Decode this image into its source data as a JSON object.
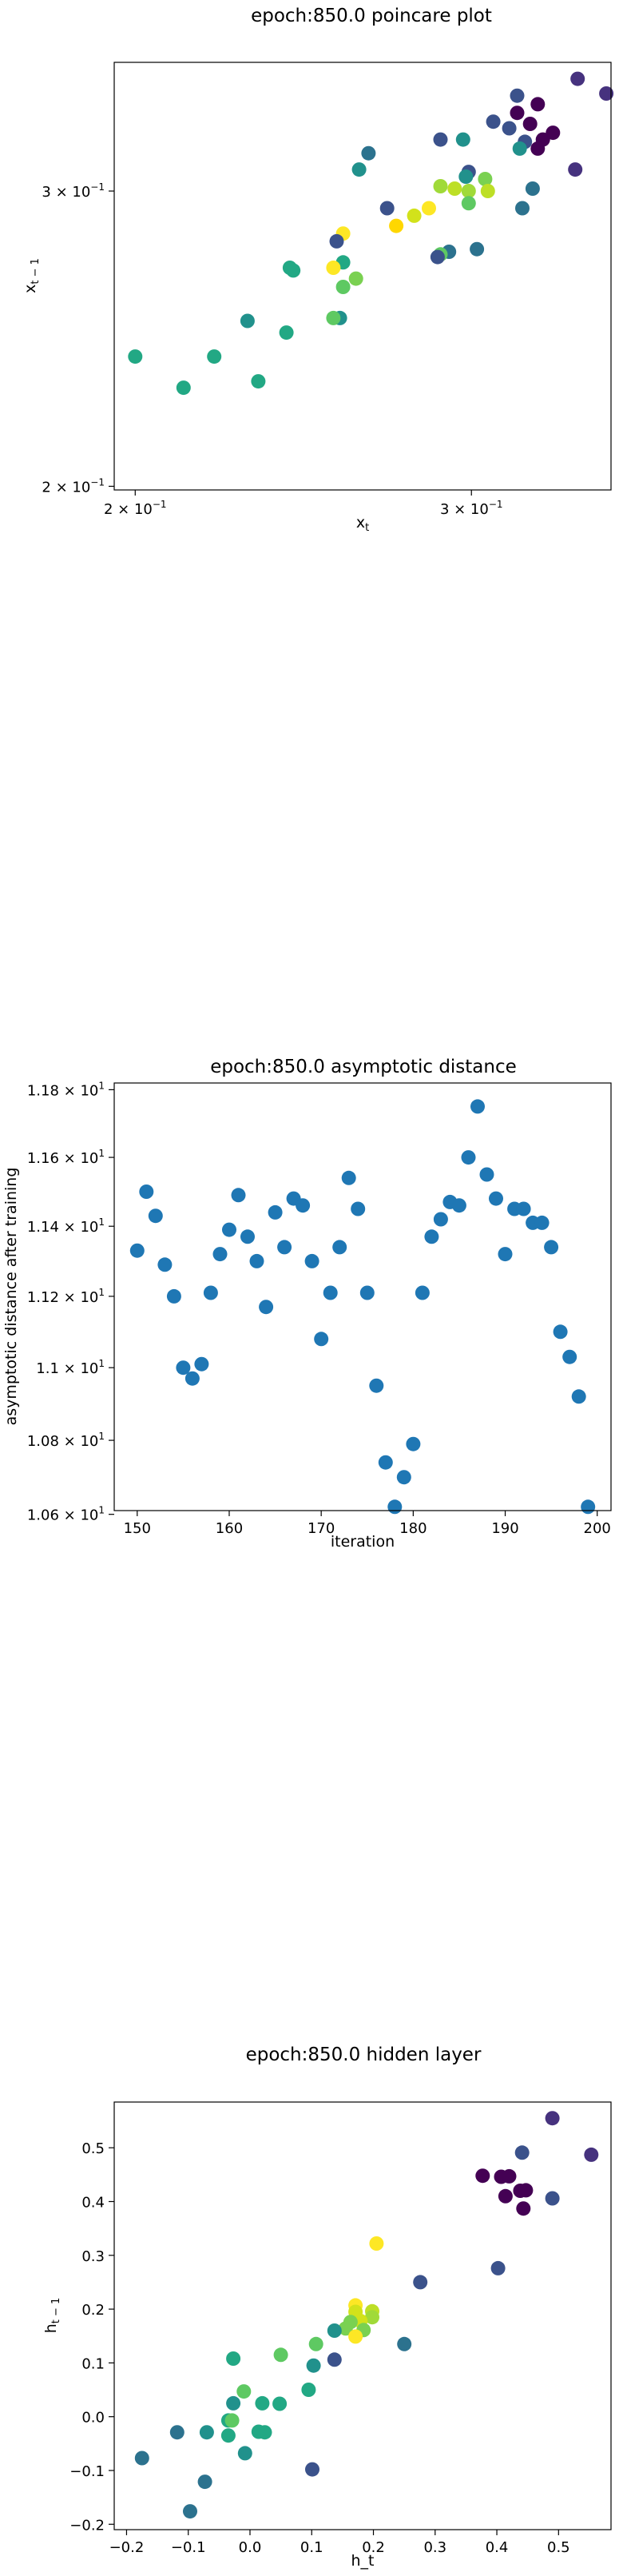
{
  "charts": {
    "poincare": {
      "title": "epoch:850.0 poincare plot",
      "xlabel": "x",
      "xlabel_sub": "t",
      "ylabel": "x",
      "ylabel_sub": "t − 1",
      "xticks": [
        {
          "v": 0.2,
          "base": "2 × 10",
          "exp": "−1"
        },
        {
          "v": 0.3,
          "base": "3 × 10",
          "exp": "−1"
        }
      ],
      "yticks": [
        {
          "v": 0.2,
          "base": "2 × 10",
          "exp": "−1"
        },
        {
          "v": 0.3,
          "base": "3 × 10",
          "exp": "−1"
        }
      ]
    },
    "asymptotic": {
      "title": "epoch:850.0 asymptotic distance",
      "xlabel": "iteration",
      "ylabel": "asymptotic distance after training",
      "xticks": [
        "150",
        "160",
        "170",
        "180",
        "190",
        "200"
      ],
      "yticks": [
        {
          "v": 10.6,
          "base": "1.06 × 10",
          "exp": "1"
        },
        {
          "v": 10.8,
          "base": "1.08 × 10",
          "exp": "1"
        },
        {
          "v": 11.0,
          "base": "1.1 × 10",
          "exp": "1"
        },
        {
          "v": 11.2,
          "base": "1.12 × 10",
          "exp": "1"
        },
        {
          "v": 11.4,
          "base": "1.14 × 10",
          "exp": "1"
        },
        {
          "v": 11.6,
          "base": "1.16 × 10",
          "exp": "1"
        },
        {
          "v": 11.8,
          "base": "1.18 × 10",
          "exp": "1"
        }
      ]
    },
    "hidden": {
      "title": "epoch:850.0 hidden layer",
      "xlabel": "h_t",
      "ylabel": "h",
      "ylabel_sub": "t − 1",
      "xticks": [
        "−0.2",
        "−0.1",
        "0.0",
        "0.1",
        "0.2",
        "0.3",
        "0.4",
        "0.5"
      ],
      "yticks": [
        "−0.2",
        "−0.1",
        "0.0",
        "0.1",
        "0.2",
        "0.3",
        "0.4",
        "0.5"
      ]
    }
  },
  "chart_data": [
    {
      "type": "scatter",
      "title": "epoch:850.0 poincare plot",
      "xlabel": "x_t",
      "ylabel": "x_{t-1}",
      "xscale": "log",
      "yscale": "log",
      "xlim": [
        0.195,
        0.355
      ],
      "ylim": [
        0.199,
        0.358
      ],
      "colormap": "viridis",
      "points": [
        [
          0.341,
          0.35,
          "#46327e"
        ],
        [
          0.353,
          0.343,
          "#46327e"
        ],
        [
          0.317,
          0.342,
          "#3b528b"
        ],
        [
          0.325,
          0.338,
          "#440154"
        ],
        [
          0.317,
          0.334,
          "#440154"
        ],
        [
          0.308,
          0.33,
          "#3b528b"
        ],
        [
          0.314,
          0.327,
          "#3b528b"
        ],
        [
          0.322,
          0.329,
          "#440154"
        ],
        [
          0.331,
          0.325,
          "#440154"
        ],
        [
          0.32,
          0.321,
          "#3b528b"
        ],
        [
          0.327,
          0.322,
          "#440154"
        ],
        [
          0.325,
          0.318,
          "#440154"
        ],
        [
          0.289,
          0.322,
          "#3b528b"
        ],
        [
          0.297,
          0.322,
          "#21918c"
        ],
        [
          0.318,
          0.318,
          "#21918c"
        ],
        [
          0.265,
          0.316,
          "#2c728e"
        ],
        [
          0.262,
          0.309,
          "#21918c"
        ],
        [
          0.299,
          0.308,
          "#3b528b"
        ],
        [
          0.34,
          0.309,
          "#46327e"
        ],
        [
          0.298,
          0.306,
          "#21918c"
        ],
        [
          0.305,
          0.305,
          "#7ad151"
        ],
        [
          0.289,
          0.302,
          "#a0da39"
        ],
        [
          0.294,
          0.301,
          "#bddf26"
        ],
        [
          0.299,
          0.3,
          "#a0da39"
        ],
        [
          0.306,
          0.3,
          "#bddf26"
        ],
        [
          0.323,
          0.301,
          "#2c728e"
        ],
        [
          0.299,
          0.295,
          "#5ec962"
        ],
        [
          0.271,
          0.293,
          "#3b528b"
        ],
        [
          0.285,
          0.293,
          "#fde725"
        ],
        [
          0.28,
          0.29,
          "#d2e21b"
        ],
        [
          0.319,
          0.293,
          "#2c728e"
        ],
        [
          0.274,
          0.286,
          "#ffd700"
        ],
        [
          0.257,
          0.283,
          "#fde725"
        ],
        [
          0.255,
          0.28,
          "#3b528b"
        ],
        [
          0.292,
          0.276,
          "#2c728e"
        ],
        [
          0.302,
          0.277,
          "#2c728e"
        ],
        [
          0.289,
          0.275,
          "#5ec962"
        ],
        [
          0.288,
          0.274,
          "#3b528b"
        ],
        [
          0.257,
          0.272,
          "#22a884"
        ],
        [
          0.254,
          0.27,
          "#fde725"
        ],
        [
          0.241,
          0.27,
          "#22a884"
        ],
        [
          0.242,
          0.269,
          "#22a884"
        ],
        [
          0.261,
          0.266,
          "#7ad151"
        ],
        [
          0.257,
          0.263,
          "#5ec962"
        ],
        [
          0.256,
          0.252,
          "#21918c"
        ],
        [
          0.254,
          0.252,
          "#5ec962"
        ],
        [
          0.229,
          0.251,
          "#21918c"
        ],
        [
          0.24,
          0.247,
          "#22a884"
        ],
        [
          0.22,
          0.239,
          "#22a884"
        ],
        [
          0.2,
          0.239,
          "#22a884"
        ],
        [
          0.232,
          0.231,
          "#22a884"
        ],
        [
          0.212,
          0.229,
          "#22a884"
        ]
      ]
    },
    {
      "type": "scatter",
      "title": "epoch:850.0 asymptotic distance",
      "xlabel": "iteration",
      "ylabel": "asymptotic distance after training",
      "yscale": "log",
      "xlim": [
        147.5,
        201.5
      ],
      "ylim": [
        10.61,
        11.82
      ],
      "color": "#1f77b4",
      "x": [
        150,
        151,
        152,
        153,
        154,
        155,
        156,
        157,
        158,
        159,
        160,
        161,
        162,
        163,
        164,
        165,
        166,
        167,
        168,
        169,
        170,
        171,
        172,
        173,
        174,
        175,
        176,
        177,
        178,
        179,
        180,
        181,
        182,
        183,
        184,
        185,
        186,
        187,
        188,
        189,
        190,
        191,
        192,
        193,
        194,
        195,
        196,
        197,
        198,
        199
      ],
      "y": [
        11.33,
        11.5,
        11.43,
        11.29,
        11.2,
        11.0,
        10.97,
        11.01,
        11.21,
        11.32,
        11.39,
        11.49,
        11.37,
        11.3,
        11.17,
        11.44,
        11.34,
        11.48,
        11.46,
        11.3,
        11.08,
        11.21,
        11.34,
        11.54,
        11.45,
        11.21,
        10.95,
        10.74,
        10.62,
        10.7,
        10.79,
        11.21,
        11.37,
        11.42,
        11.47,
        11.46,
        11.6,
        11.75,
        11.55,
        11.48,
        11.32,
        11.45,
        11.45,
        11.41,
        11.41,
        11.34,
        11.1,
        11.03,
        10.92,
        10.62
      ]
    },
    {
      "type": "scatter",
      "title": "epoch:850.0 hidden layer",
      "xlabel": "h_t",
      "ylabel": "h_{t-1}",
      "xlim": [
        -0.22,
        0.585
      ],
      "ylim": [
        -0.21,
        0.585
      ],
      "colormap": "viridis",
      "points": [
        [
          0.49,
          0.555,
          "#46327e"
        ],
        [
          0.553,
          0.487,
          "#46327e"
        ],
        [
          0.441,
          0.491,
          "#3b528b"
        ],
        [
          0.377,
          0.448,
          "#440154"
        ],
        [
          0.407,
          0.446,
          "#440154"
        ],
        [
          0.42,
          0.447,
          "#440154"
        ],
        [
          0.438,
          0.42,
          "#440154"
        ],
        [
          0.447,
          0.421,
          "#440154"
        ],
        [
          0.414,
          0.41,
          "#440154"
        ],
        [
          0.49,
          0.406,
          "#3b528b"
        ],
        [
          0.443,
          0.387,
          "#440154"
        ],
        [
          0.205,
          0.322,
          "#fde725"
        ],
        [
          0.402,
          0.276,
          "#3b528b"
        ],
        [
          0.276,
          0.25,
          "#3b528b"
        ],
        [
          0.171,
          0.207,
          "#fde725"
        ],
        [
          0.171,
          0.195,
          "#d2e21b"
        ],
        [
          0.198,
          0.196,
          "#bddf26"
        ],
        [
          0.198,
          0.185,
          "#a0da39"
        ],
        [
          0.179,
          0.178,
          "#d2e21b"
        ],
        [
          0.163,
          0.176,
          "#7ad151"
        ],
        [
          0.155,
          0.164,
          "#7ad151"
        ],
        [
          0.137,
          0.16,
          "#21918c"
        ],
        [
          0.184,
          0.161,
          "#7ad151"
        ],
        [
          0.171,
          0.149,
          "#fde725"
        ],
        [
          0.107,
          0.135,
          "#5ec962"
        ],
        [
          0.25,
          0.135,
          "#2c728e"
        ],
        [
          0.137,
          0.106,
          "#3b528b"
        ],
        [
          -0.027,
          0.108,
          "#22a884"
        ],
        [
          0.05,
          0.115,
          "#5ec962"
        ],
        [
          0.103,
          0.095,
          "#21918c"
        ],
        [
          0.095,
          0.05,
          "#22a884"
        ],
        [
          -0.01,
          0.047,
          "#5ec962"
        ],
        [
          0.02,
          0.025,
          "#22a884"
        ],
        [
          0.048,
          0.024,
          "#22a884"
        ],
        [
          -0.027,
          0.025,
          "#21918c"
        ],
        [
          -0.035,
          -0.007,
          "#22a884"
        ],
        [
          -0.029,
          -0.007,
          "#5ec962"
        ],
        [
          0.014,
          -0.028,
          "#22a884"
        ],
        [
          0.024,
          -0.029,
          "#22a884"
        ],
        [
          -0.07,
          -0.029,
          "#21918c"
        ],
        [
          -0.118,
          -0.029,
          "#2c728e"
        ],
        [
          -0.035,
          -0.035,
          "#22a884"
        ],
        [
          0.101,
          -0.098,
          "#3b528b"
        ],
        [
          -0.008,
          -0.068,
          "#21918c"
        ],
        [
          -0.175,
          -0.077,
          "#2c728e"
        ],
        [
          -0.073,
          -0.121,
          "#2c728e"
        ],
        [
          -0.097,
          -0.176,
          "#2c728e"
        ]
      ]
    }
  ]
}
